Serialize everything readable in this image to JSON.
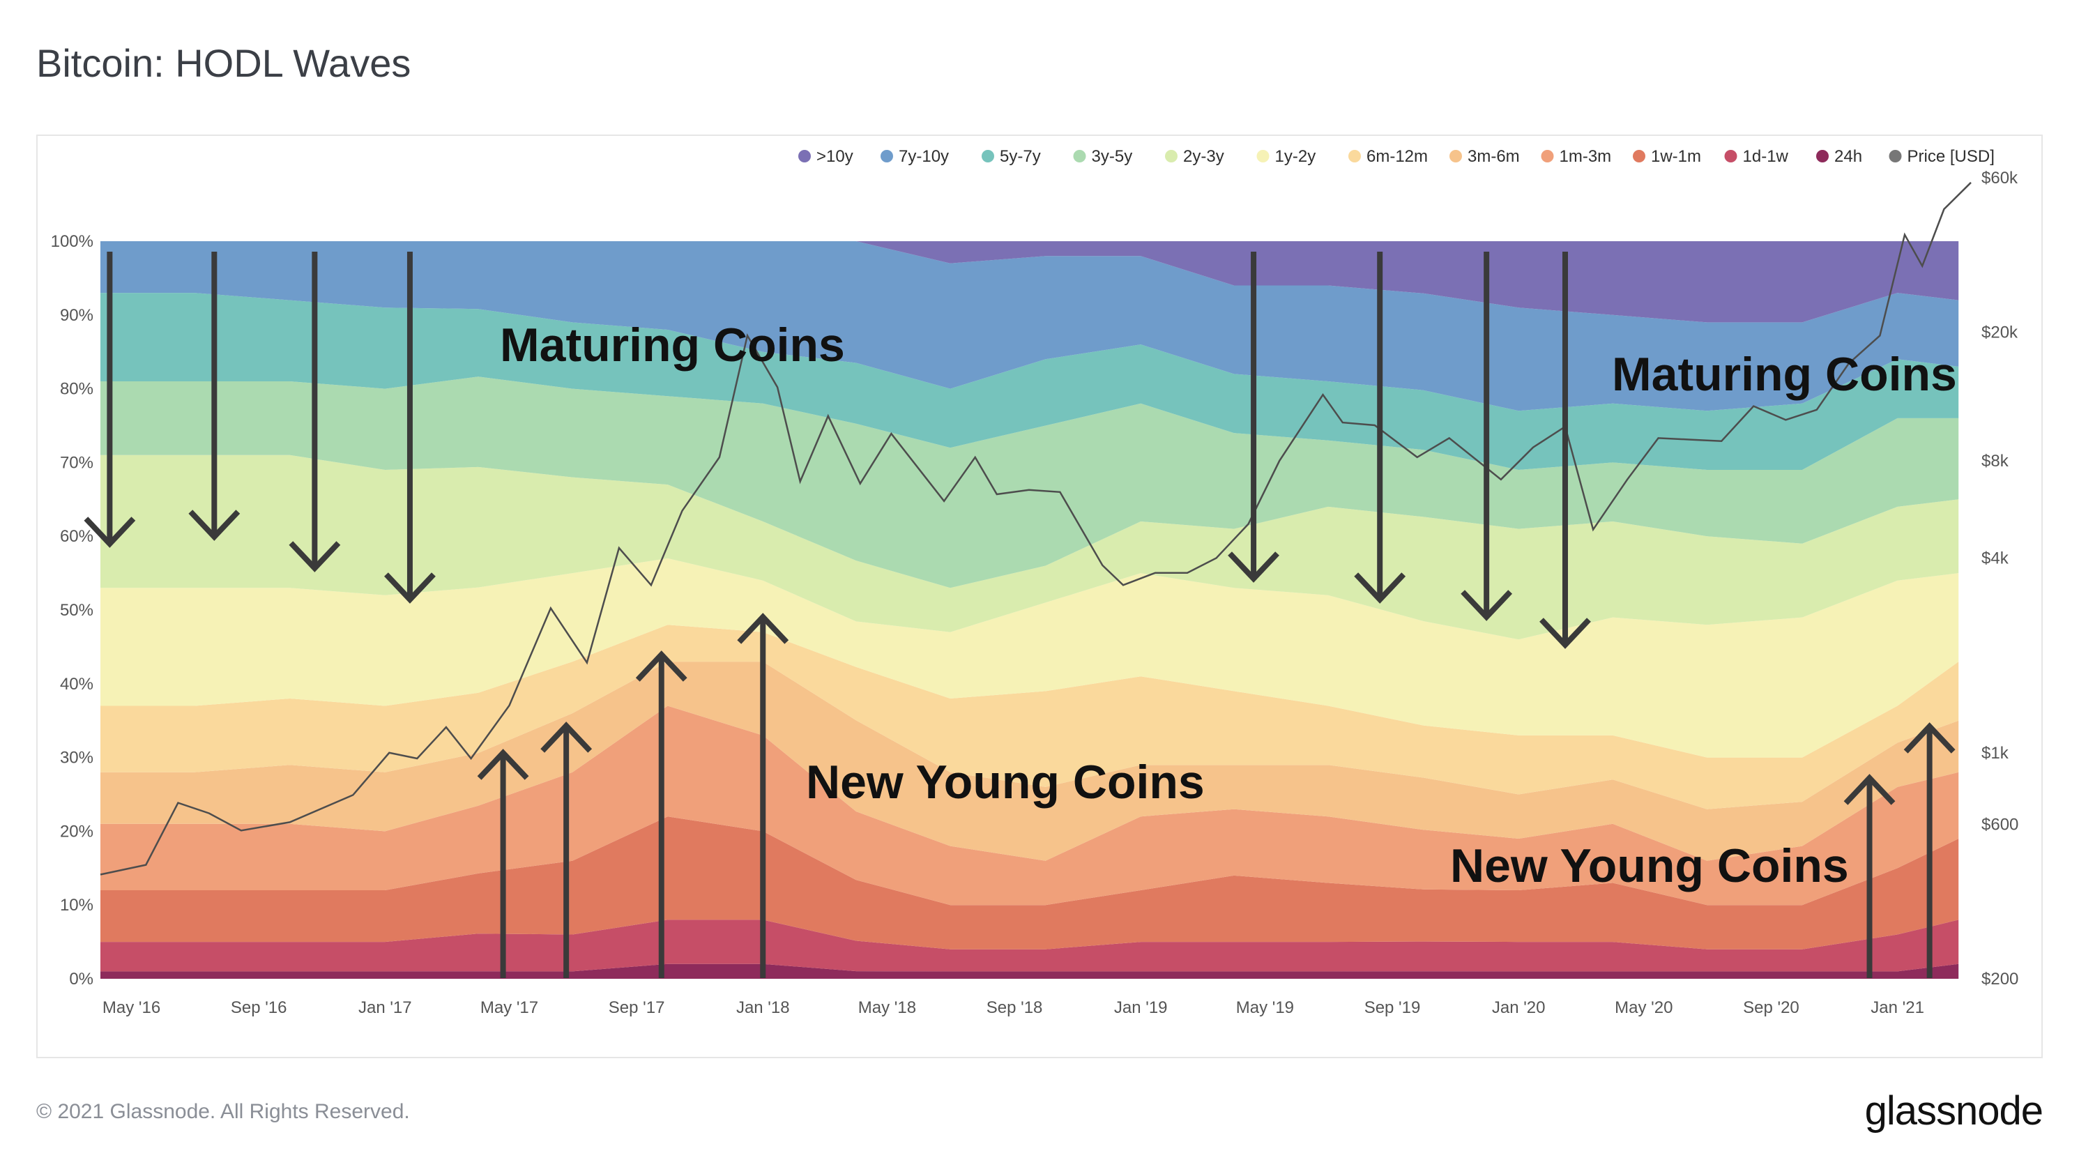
{
  "title": "Bitcoin: HODL Waves",
  "footer": {
    "copyright": "© 2021 Glassnode. All Rights Reserved.",
    "logo": "glassnode"
  },
  "watermark": "glassnode",
  "chart_data": {
    "type": "area",
    "stacked": true,
    "normalized_percent": true,
    "y_left_ticks": [
      "0%",
      "10%",
      "20%",
      "30%",
      "40%",
      "50%",
      "60%",
      "70%",
      "80%",
      "90%",
      "100%"
    ],
    "y_right_ticks": [
      "$200",
      "$600",
      "$1k",
      "$4k",
      "$8k",
      "$20k",
      "$60k"
    ],
    "y_right_scale": "log",
    "y_right_range": [
      200,
      60000
    ],
    "x_range": [
      "2016-04-01",
      "2021-03-15"
    ],
    "x_ticks": [
      "May '16",
      "Sep '16",
      "Jan '17",
      "May '17",
      "Sep '17",
      "Jan '18",
      "May '18",
      "Sep '18",
      "Jan '19",
      "May '19",
      "Sep '19",
      "Jan '20",
      "May '20",
      "Sep '20",
      "Jan '21"
    ],
    "legend_placement": "top-right",
    "x": [
      "2016-04",
      "2016-07",
      "2016-10",
      "2017-01",
      "2017-04",
      "2017-07",
      "2017-10",
      "2018-01",
      "2018-04",
      "2018-07",
      "2018-10",
      "2019-01",
      "2019-04",
      "2019-07",
      "2019-10",
      "2020-01",
      "2020-04",
      "2020-07",
      "2020-10",
      "2021-01",
      "2021-03"
    ],
    "series": [
      {
        "name": "24h",
        "color": "#8e2b5b",
        "values": [
          1,
          1,
          1,
          1,
          1,
          1,
          2,
          2,
          1,
          1,
          1,
          1,
          1,
          1,
          1,
          1,
          1,
          1,
          1,
          1,
          2
        ]
      },
      {
        "name": "1d-1w",
        "color": "#c64e67",
        "values": [
          4,
          4,
          4,
          4,
          5,
          5,
          6,
          6,
          4,
          3,
          3,
          4,
          4,
          4,
          4,
          4,
          4,
          3,
          3,
          5,
          6
        ]
      },
      {
        "name": "1w-1m",
        "color": "#e07a5f",
        "values": [
          7,
          7,
          7,
          7,
          8,
          10,
          14,
          12,
          8,
          6,
          6,
          7,
          9,
          8,
          7,
          7,
          8,
          6,
          6,
          9,
          11
        ]
      },
      {
        "name": "1m-3m",
        "color": "#f0a07a",
        "values": [
          9,
          9,
          9,
          8,
          9,
          12,
          15,
          13,
          9,
          8,
          6,
          10,
          9,
          9,
          8,
          7,
          8,
          6,
          8,
          11,
          9
        ]
      },
      {
        "name": "3m-6m",
        "color": "#f6c38b",
        "values": [
          7,
          7,
          8,
          8,
          7,
          8,
          6,
          10,
          12,
          10,
          10,
          7,
          6,
          7,
          7,
          6,
          6,
          7,
          6,
          6,
          7
        ]
      },
      {
        "name": "6m-12m",
        "color": "#fad99c",
        "values": [
          9,
          9,
          9,
          9,
          8,
          7,
          5,
          4,
          7,
          10,
          13,
          12,
          10,
          8,
          7,
          8,
          6,
          7,
          6,
          5,
          8
        ]
      },
      {
        "name": "1y-2y",
        "color": "#f6f2b6",
        "values": [
          16,
          16,
          15,
          15,
          14,
          12,
          9,
          7,
          6,
          9,
          12,
          14,
          14,
          15,
          14,
          13,
          16,
          18,
          19,
          17,
          12
        ]
      },
      {
        "name": "2y-3y",
        "color": "#d9ecae",
        "values": [
          18,
          18,
          18,
          17,
          16,
          13,
          10,
          8,
          8,
          6,
          5,
          7,
          8,
          12,
          14,
          15,
          13,
          12,
          10,
          10,
          10
        ]
      },
      {
        "name": "3y-5y",
        "color": "#abdab0",
        "values": [
          10,
          10,
          10,
          11,
          12,
          12,
          12,
          16,
          18,
          19,
          19,
          16,
          13,
          9,
          9,
          8,
          8,
          9,
          10,
          12,
          11
        ]
      },
      {
        "name": "5y-7y",
        "color": "#76c3bc",
        "values": [
          12,
          12,
          11,
          11,
          9,
          9,
          9,
          7,
          8,
          8,
          9,
          8,
          8,
          8,
          8,
          8,
          8,
          8,
          9,
          8,
          7
        ]
      },
      {
        "name": "7y-10y",
        "color": "#6f9ccb",
        "values": [
          7,
          7,
          8,
          9,
          9,
          11,
          12,
          15,
          16,
          17,
          14,
          12,
          12,
          13,
          13,
          14,
          12,
          12,
          11,
          9,
          9
        ]
      },
      {
        "name": ">10y",
        "color": "#7b70b4",
        "values": [
          0,
          0,
          0,
          0,
          0,
          0,
          0,
          0,
          0,
          3,
          2,
          2,
          6,
          6,
          7,
          9,
          10,
          11,
          11,
          7,
          8
        ]
      }
    ],
    "price_series": {
      "name": "Price [USD]",
      "color": "#4d4d4d",
      "points": [
        [
          "2016-04-01",
          420
        ],
        [
          "2016-05-15",
          450
        ],
        [
          "2016-06-15",
          700
        ],
        [
          "2016-07-15",
          650
        ],
        [
          "2016-08-15",
          575
        ],
        [
          "2016-10-01",
          610
        ],
        [
          "2016-12-01",
          740
        ],
        [
          "2017-01-05",
          1000
        ],
        [
          "2017-02-01",
          960
        ],
        [
          "2017-03-01",
          1200
        ],
        [
          "2017-03-25",
          960
        ],
        [
          "2017-05-01",
          1400
        ],
        [
          "2017-06-10",
          2800
        ],
        [
          "2017-07-15",
          1900
        ],
        [
          "2017-08-15",
          4300
        ],
        [
          "2017-09-15",
          3300
        ],
        [
          "2017-10-15",
          5600
        ],
        [
          "2017-11-20",
          8200
        ],
        [
          "2017-12-17",
          19500
        ],
        [
          "2018-01-15",
          13500
        ],
        [
          "2018-02-06",
          6900
        ],
        [
          "2018-03-05",
          11000
        ],
        [
          "2018-04-05",
          6800
        ],
        [
          "2018-05-05",
          9700
        ],
        [
          "2018-06-25",
          6000
        ],
        [
          "2018-07-25",
          8200
        ],
        [
          "2018-08-15",
          6300
        ],
        [
          "2018-09-15",
          6500
        ],
        [
          "2018-10-15",
          6400
        ],
        [
          "2018-11-25",
          3800
        ],
        [
          "2018-12-15",
          3300
        ],
        [
          "2019-01-15",
          3600
        ],
        [
          "2019-02-15",
          3600
        ],
        [
          "2019-03-15",
          4000
        ],
        [
          "2019-04-15",
          5100
        ],
        [
          "2019-05-15",
          8000
        ],
        [
          "2019-06-26",
          12800
        ],
        [
          "2019-07-15",
          10500
        ],
        [
          "2019-08-15",
          10300
        ],
        [
          "2019-09-25",
          8200
        ],
        [
          "2019-10-26",
          9400
        ],
        [
          "2019-12-15",
          7000
        ],
        [
          "2020-01-15",
          8800
        ],
        [
          "2020-02-15",
          10200
        ],
        [
          "2020-03-13",
          4900
        ],
        [
          "2020-04-15",
          7000
        ],
        [
          "2020-05-15",
          9400
        ],
        [
          "2020-06-15",
          9300
        ],
        [
          "2020-07-15",
          9200
        ],
        [
          "2020-08-15",
          11800
        ],
        [
          "2020-09-15",
          10700
        ],
        [
          "2020-10-15",
          11500
        ],
        [
          "2020-11-15",
          16000
        ],
        [
          "2020-12-15",
          19500
        ],
        [
          "2021-01-08",
          40000
        ],
        [
          "2021-01-25",
          32000
        ],
        [
          "2021-02-15",
          48000
        ],
        [
          "2021-03-13",
          58000
        ]
      ]
    },
    "annotations": [
      "Maturing Coins",
      "Maturing Coins",
      "New Young Coins",
      "New Young Coins"
    ],
    "annotation_arrows": {
      "down_dates": [
        "2016-04-10",
        "2016-07-20",
        "2016-10-25",
        "2017-01-25",
        "2019-04-20",
        "2019-08-20",
        "2019-12-01",
        "2020-02-15"
      ],
      "up_dates": [
        "2017-04-25",
        "2017-06-25",
        "2017-09-25",
        "2018-01-01",
        "2020-12-05",
        "2021-02-01"
      ]
    }
  }
}
